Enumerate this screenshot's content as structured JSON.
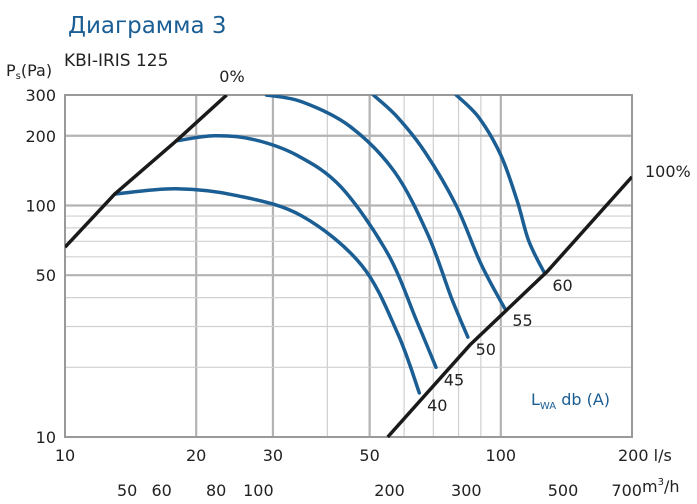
{
  "chart_data": {
    "type": "line",
    "title": "Диаграмма 3",
    "subtitle": "KBI-IRIS 125",
    "scale": "log-log",
    "ylabel": {
      "base": "P",
      "sub": "s",
      "rest": "(Pa)"
    },
    "xlabel": "l/s",
    "xlabel2": "m³/h",
    "xlim": [
      10,
      200
    ],
    "ylim": [
      10,
      300
    ],
    "x_ticks": [
      {
        "value": 10,
        "label": "10"
      },
      {
        "value": 20,
        "label": "20"
      },
      {
        "value": 30,
        "label": "30"
      },
      {
        "value": 50,
        "label": "50"
      },
      {
        "value": 100,
        "label": "100"
      },
      {
        "value": 200,
        "label": "200 l/s"
      }
    ],
    "x2_ticks": [
      {
        "value": 50,
        "label": "50"
      },
      {
        "value": 60,
        "label": "60"
      },
      {
        "value": 80,
        "label": "80"
      },
      {
        "value": 100,
        "label": "100"
      },
      {
        "value": 200,
        "label": "200"
      },
      {
        "value": 300,
        "label": "300"
      },
      {
        "value": 500,
        "label": "500"
      },
      {
        "value": 700,
        "label": "700"
      }
    ],
    "y_ticks": [
      {
        "value": 10,
        "label": "10"
      },
      {
        "value": 50,
        "label": "50"
      },
      {
        "value": 100,
        "label": "100"
      },
      {
        "value": 200,
        "label": "200"
      },
      {
        "value": 300,
        "label": "300"
      }
    ],
    "grid": true,
    "damper_lines": [
      {
        "label": "0%",
        "points": [
          [
            10,
            66
          ],
          [
            13,
            112
          ],
          [
            18,
            190
          ],
          [
            23.5,
            300
          ]
        ]
      },
      {
        "label": "100%",
        "points": [
          [
            55,
            10
          ],
          [
            85,
            25
          ],
          [
            128,
            52
          ],
          [
            200,
            133
          ]
        ]
      }
    ],
    "sound_lines": [
      {
        "label": "40",
        "points": [
          [
            13,
            112
          ],
          [
            18,
            118
          ],
          [
            25,
            110
          ],
          [
            35,
            90
          ],
          [
            48,
            55
          ],
          [
            58,
            28
          ],
          [
            65,
            15.5
          ]
        ]
      },
      {
        "label": "45",
        "points": [
          [
            18,
            190
          ],
          [
            22,
            200
          ],
          [
            27,
            193
          ],
          [
            34,
            165
          ],
          [
            43,
            120
          ],
          [
            55,
            62
          ],
          [
            64,
            32
          ],
          [
            71,
            20
          ]
        ]
      },
      {
        "label": "50",
        "points": [
          [
            29,
            300
          ],
          [
            35,
            280
          ],
          [
            45,
            220
          ],
          [
            57,
            140
          ],
          [
            68,
            75
          ],
          [
            77,
            40
          ],
          [
            84,
            27
          ]
        ]
      },
      {
        "label": "55",
        "points": [
          [
            51,
            300
          ],
          [
            58,
            240
          ],
          [
            67,
            170
          ],
          [
            79,
            100
          ],
          [
            90,
            56
          ],
          [
            102,
            36
          ]
        ]
      },
      {
        "label": "60",
        "points": [
          [
            79,
            300
          ],
          [
            89,
            240
          ],
          [
            100,
            165
          ],
          [
            109,
            105
          ],
          [
            116,
            70
          ],
          [
            126,
            51
          ]
        ]
      }
    ],
    "annotation": {
      "base": "L",
      "sub": "WA",
      "rest": " db (A)"
    },
    "colors": {
      "sound": "#1b5e94",
      "damper": "#1a1a1a",
      "grid": "#c8c8c8",
      "frame": "#999999"
    }
  }
}
